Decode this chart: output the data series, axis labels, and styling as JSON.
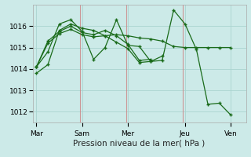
{
  "background_color": "#cceae8",
  "grid_color": "#aad4d0",
  "line_color": "#1a6b1a",
  "xlabel": "Pression niveau de la mer( hPa )",
  "xlabel_fontsize": 7.5,
  "tick_fontsize": 6.5,
  "ylim": [
    1011.5,
    1017.0
  ],
  "yticks": [
    1012,
    1013,
    1014,
    1015,
    1016
  ],
  "xtick_labels": [
    "Mar",
    "Sam",
    "Mer",
    "Jeu",
    "Ven"
  ],
  "xtick_positions": [
    0,
    24,
    48,
    78,
    102
  ],
  "n_points": 108,
  "vline_positions": [
    23,
    47,
    77
  ],
  "vline_color": "#cc8888",
  "series": [
    {
      "x": [
        0,
        6,
        12,
        18,
        24,
        30,
        36,
        42,
        48,
        54,
        60,
        66,
        72,
        78,
        84,
        90,
        96,
        102
      ],
      "y": [
        1013.8,
        1014.2,
        1015.8,
        1016.1,
        1015.9,
        1015.8,
        1015.55,
        1015.6,
        1015.55,
        1015.45,
        1015.4,
        1015.3,
        1015.05,
        1015.0,
        1015.0,
        1015.0,
        1015.0,
        1015.0
      ]
    },
    {
      "x": [
        0,
        6,
        12,
        18,
        24,
        30,
        36,
        42,
        48,
        54,
        60,
        66,
        72,
        78,
        84,
        90,
        96,
        102
      ],
      "y": [
        1014.1,
        1014.8,
        1016.1,
        1016.3,
        1015.75,
        1014.45,
        1015.0,
        1016.3,
        1015.1,
        1015.05,
        1014.35,
        1014.4,
        1016.75,
        1016.1,
        1014.9,
        1012.35,
        1012.4,
        1011.85
      ]
    },
    {
      "x": [
        0,
        6,
        12,
        18,
        24,
        30,
        36,
        42,
        48,
        54,
        60
      ],
      "y": [
        1014.1,
        1015.3,
        1015.75,
        1016.0,
        1015.7,
        1015.6,
        1015.8,
        1015.55,
        1015.15,
        1014.4,
        1014.45
      ]
    },
    {
      "x": [
        0,
        6,
        12,
        18,
        24,
        30,
        36,
        42,
        48,
        54,
        60,
        66
      ],
      "y": [
        1014.1,
        1015.2,
        1015.65,
        1015.85,
        1015.6,
        1015.5,
        1015.55,
        1015.25,
        1014.95,
        1014.3,
        1014.35,
        1014.6
      ]
    }
  ]
}
